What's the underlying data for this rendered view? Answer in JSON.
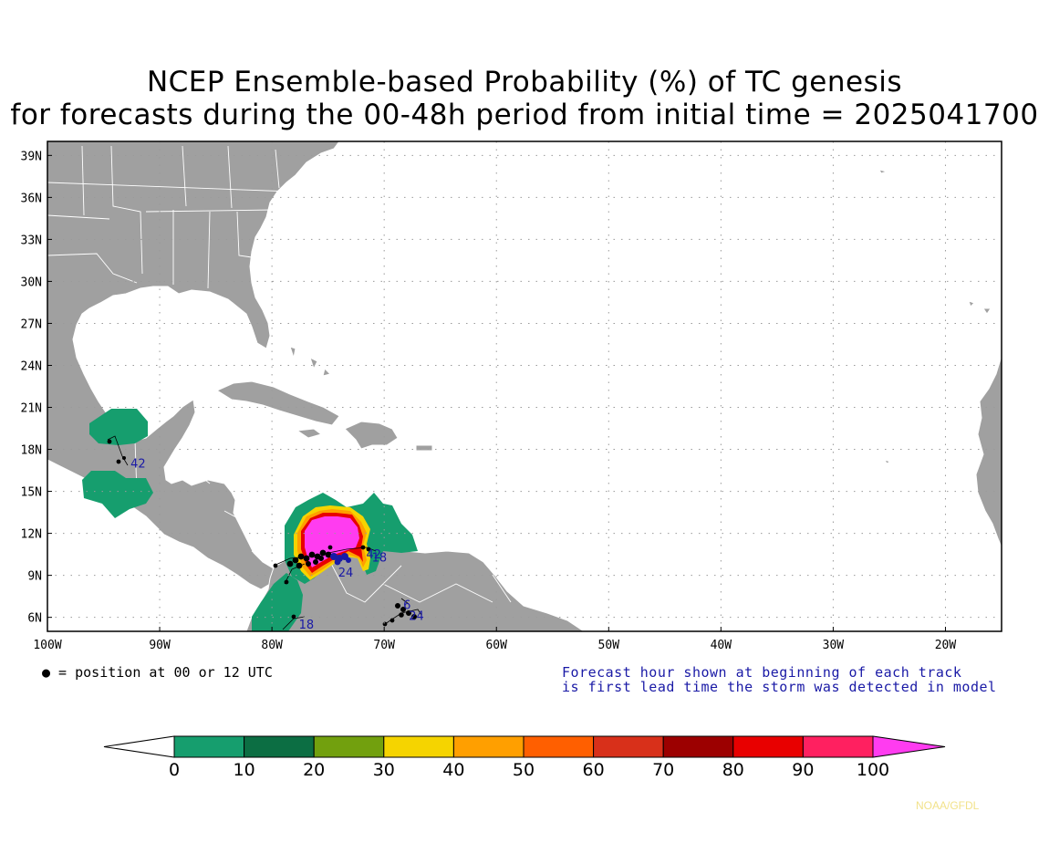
{
  "title_line1": "NCEP Ensemble-based Probability (%) of TC genesis",
  "title_line2": "for forecasts during the 00-48h period from initial time = 2025041700",
  "map": {
    "lon_range": [
      -100,
      -15
    ],
    "lat_range": [
      5,
      40
    ],
    "lat_ticks": [
      {
        "value": 39,
        "label": "39N"
      },
      {
        "value": 36,
        "label": "36N"
      },
      {
        "value": 33,
        "label": "33N"
      },
      {
        "value": 30,
        "label": "30N"
      },
      {
        "value": 27,
        "label": "27N"
      },
      {
        "value": 24,
        "label": "24N"
      },
      {
        "value": 21,
        "label": "21N"
      },
      {
        "value": 18,
        "label": "18N"
      },
      {
        "value": 15,
        "label": "15N"
      },
      {
        "value": 12,
        "label": "12N"
      },
      {
        "value": 9,
        "label": "9N"
      },
      {
        "value": 6,
        "label": "6N"
      }
    ],
    "lon_ticks": [
      {
        "value": -100,
        "label": "100W"
      },
      {
        "value": -90,
        "label": "90W"
      },
      {
        "value": -80,
        "label": "80W"
      },
      {
        "value": -70,
        "label": "70W"
      },
      {
        "value": -60,
        "label": "60W"
      },
      {
        "value": -50,
        "label": "50W"
      },
      {
        "value": -40,
        "label": "40W"
      },
      {
        "value": -30,
        "label": "30W"
      },
      {
        "value": -20,
        "label": "20W"
      }
    ],
    "grid": "dotted",
    "land_color": "#a0a0a0",
    "border_color": "#ffffff",
    "track_labels": [
      {
        "text": "42",
        "lon": -92.6,
        "lat": 16.7
      },
      {
        "text": "18",
        "lon": -77.6,
        "lat": 5.2
      },
      {
        "text": "24",
        "lon": -74.1,
        "lat": 8.9
      },
      {
        "text": "42",
        "lon": -71.6,
        "lat": 10.2
      },
      {
        "text": "18",
        "lon": -71.1,
        "lat": 10.0
      },
      {
        "text": "24",
        "lon": -67.8,
        "lat": 5.8
      },
      {
        "text": "6",
        "lon": -68.3,
        "lat": 6.6
      }
    ]
  },
  "legend_note": "● = position at 00 or 12 UTC",
  "note_line1": "Forecast hour shown at beginning of each track",
  "note_line2": "is first lead time the storm was detected in model",
  "colorbar": {
    "levels": [
      "0",
      "10",
      "20",
      "30",
      "40",
      "50",
      "60",
      "70",
      "80",
      "90",
      "100"
    ],
    "colors": [
      "#169e6e",
      "#0c6e43",
      "#72a00e",
      "#f5d400",
      "#ff9f00",
      "#ff5f00",
      "#d8301a",
      "#9c0000",
      "#e80000",
      "#ff2060"
    ],
    "under_color": "#ffffff",
    "over_color": "#ff3cf0"
  },
  "credit": "NOAA/GFDL"
}
